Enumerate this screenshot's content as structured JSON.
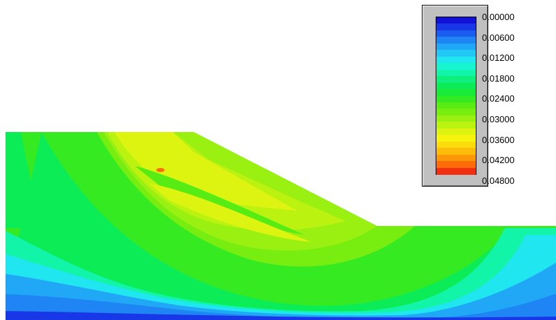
{
  "chart_data": {
    "type": "heatmap",
    "title": "",
    "xlabel": "",
    "ylabel": "",
    "legend_position": "top-right",
    "colorbar": {
      "ticks": [
        "0.00000",
        "0.00600",
        "0.01200",
        "0.01800",
        "0.02400",
        "0.03000",
        "0.03600",
        "0.04200",
        "0.04800"
      ],
      "min": 0.0,
      "max": 0.048,
      "levels": 24,
      "colors": [
        "#1010d8",
        "#1838e8",
        "#1a5cf0",
        "#1f84f4",
        "#20a8f6",
        "#21c8f6",
        "#20e6f0",
        "#19f4d0",
        "#12f4a8",
        "#0ef07e",
        "#0cec56",
        "#18ea3a",
        "#36ea22",
        "#56ec14",
        "#78ee10",
        "#9af010",
        "#bcf210",
        "#dcf410",
        "#f6f40c",
        "#fcdc0a",
        "#fcbc08",
        "#fc9808",
        "#fc6c08",
        "#f03010"
      ]
    },
    "field_levels": {
      "top_surface": 0.024,
      "slope_face": 0.03,
      "failure_band_core": 0.045,
      "upper_failure_zone": 0.036,
      "lower_failure_zone": 0.034,
      "toe_region": 0.024,
      "base_layer": 0.006,
      "right_embankment": 0.012
    }
  }
}
